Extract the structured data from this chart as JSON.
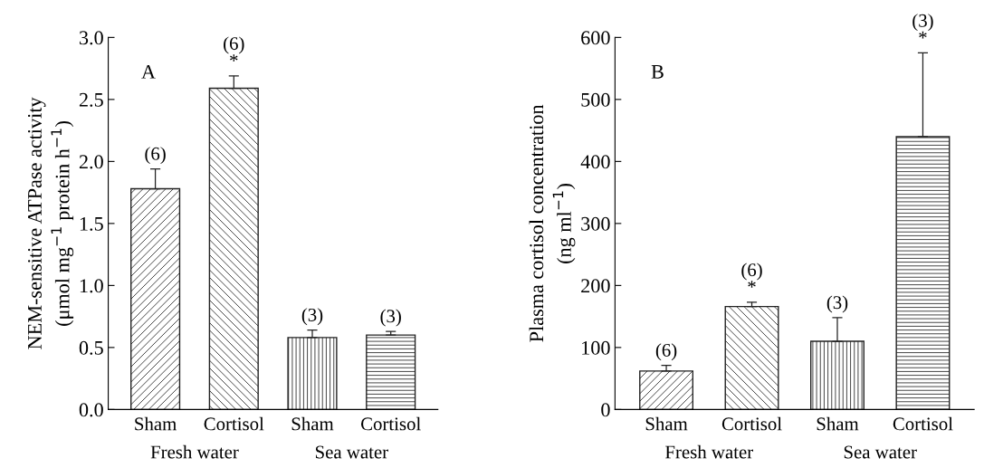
{
  "chart_data": [
    {
      "type": "bar",
      "ylabel": "NEM-sensitive ATPase activity\n(μmol mg$^{−1}$ protein h$^{−1}$)",
      "categories": [
        "Sham",
        "Cortisol",
        "Sham",
        "Cortisol"
      ],
      "values": [
        1.78,
        2.59,
        0.58,
        0.6
      ],
      "errors": [
        [
          1.78,
          1.94
        ],
        [
          2.59,
          2.69
        ],
        [
          0.58,
          0.64
        ],
        [
          0.6,
          0.63
        ]
      ],
      "colors": [
        "#222222",
        "#222222",
        "#222222",
        "#222222"
      ],
      "ylim": [
        0,
        3.0
      ],
      "yticks": [
        {
          "value": 0,
          "label": "0.0"
        },
        0.5,
        {
          "value": 1,
          "label": "1.0"
        },
        1.5,
        {
          "value": 2,
          "label": "2.0"
        },
        2.5,
        {
          "value": 3,
          "label": "3.0"
        }
      ],
      "annotations": [
        "A",
        "Fresh water",
        "Sea water",
        "(6)",
        "(6)\n*",
        "(3)",
        "(3)"
      ],
      "grid": false
    },
    {
      "type": "bar",
      "ylabel": "Plasma cortisol concentration\n(ng ml$^{−1}$)",
      "categories": [
        "Sham",
        "Cortisol",
        "Sham",
        "Cortisol"
      ],
      "values": [
        62,
        166,
        110,
        440
      ],
      "errors": [
        [
          62,
          71
        ],
        [
          166,
          173
        ],
        [
          110,
          148
        ],
        [
          440,
          575
        ]
      ],
      "colors": [
        "#222222",
        "#222222",
        "#222222",
        "#222222"
      ],
      "ylim": [
        0,
        600
      ],
      "yticks": [
        0,
        100,
        200,
        300,
        400,
        500,
        600
      ],
      "annotations": [
        "B",
        "Fresh water",
        "Sea water",
        "(6)",
        "(6)\n*",
        "(3)",
        "(3)\n*"
      ],
      "grid": false
    }
  ]
}
